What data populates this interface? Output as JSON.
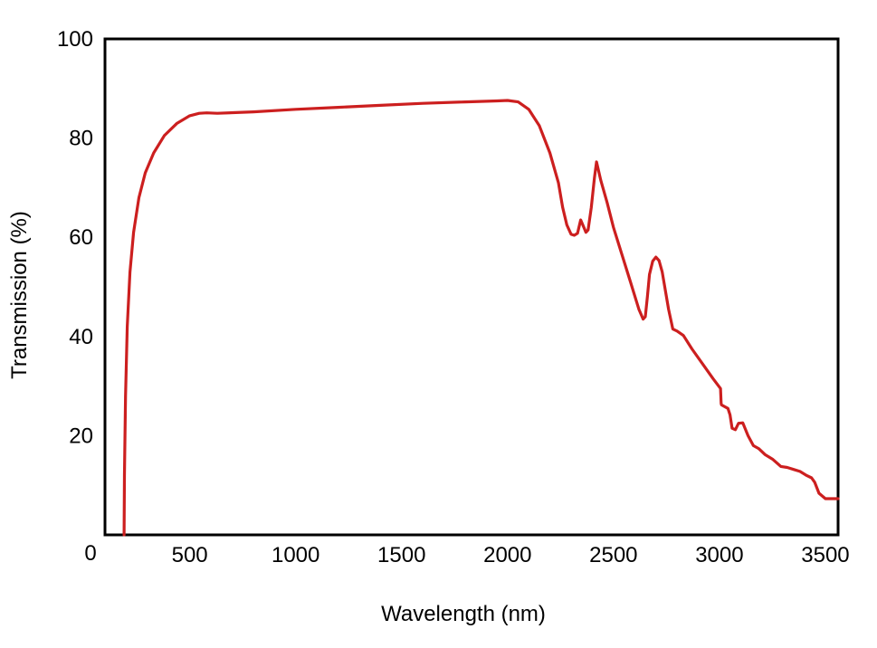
{
  "chart_data": {
    "type": "line",
    "title": "",
    "xlabel": "Wavelength (nm)",
    "ylabel": "Transmission (%)",
    "xlim": [
      100,
      3560
    ],
    "ylim": [
      0,
      100
    ],
    "grid": false,
    "legend": "none",
    "origin_label": "0",
    "xticks": [
      {
        "value": 500,
        "label": "500"
      },
      {
        "value": 1000,
        "label": "1000"
      },
      {
        "value": 1500,
        "label": "1500"
      },
      {
        "value": 2000,
        "label": "2000"
      },
      {
        "value": 2500,
        "label": "2500"
      },
      {
        "value": 3000,
        "label": "3000"
      },
      {
        "value": 3500,
        "label": "3500"
      }
    ],
    "yticks": [
      {
        "value": 20,
        "label": "20"
      },
      {
        "value": 40,
        "label": "40"
      },
      {
        "value": 60,
        "label": "60"
      },
      {
        "value": 80,
        "label": "80"
      },
      {
        "value": 100,
        "label": "100"
      }
    ],
    "series": [
      {
        "name": "Transmission",
        "color": "#cc1f1f",
        "x": [
          190,
          192,
          197,
          205,
          218,
          235,
          260,
          290,
          330,
          380,
          440,
          500,
          545,
          580,
          630,
          800,
          1000,
          1200,
          1400,
          1600,
          1800,
          1950,
          2000,
          2050,
          2100,
          2150,
          2200,
          2240,
          2260,
          2280,
          2300,
          2315,
          2330,
          2345,
          2360,
          2370,
          2380,
          2395,
          2410,
          2420,
          2440,
          2470,
          2500,
          2540,
          2580,
          2620,
          2640,
          2650,
          2660,
          2670,
          2685,
          2700,
          2715,
          2730,
          2760,
          2780,
          2800,
          2830,
          2870,
          2920,
          2970,
          3005,
          3008,
          3010,
          3040,
          3050,
          3060,
          3075,
          3090,
          3110,
          3135,
          3160,
          3185,
          3215,
          3250,
          3290,
          3320,
          3350,
          3380,
          3410,
          3435,
          3450,
          3470,
          3500,
          3520,
          3530,
          3550,
          3560
        ],
        "y": [
          0,
          12,
          28,
          42,
          53,
          61,
          68,
          73,
          77,
          80.5,
          83,
          84.5,
          85,
          85.1,
          85,
          85.3,
          85.8,
          86.2,
          86.6,
          87,
          87.3,
          87.5,
          87.6,
          87.3,
          85.8,
          82.5,
          77,
          71,
          66,
          62.5,
          60.6,
          60.4,
          60.8,
          63.5,
          62,
          61,
          61.5,
          66,
          72,
          75.2,
          71.5,
          67,
          62,
          56.5,
          51,
          45.5,
          43.5,
          44,
          48,
          52.5,
          55.2,
          56,
          55.3,
          53,
          45.5,
          41.5,
          41.1,
          40.2,
          37.5,
          34.5,
          31.5,
          29.5,
          26.5,
          26.2,
          25.5,
          24.2,
          21.5,
          21.2,
          22.5,
          22.6,
          20,
          18,
          17.4,
          16.2,
          15.3,
          13.8,
          13.6,
          13.2,
          12.8,
          12,
          11.5,
          10.6,
          8.4,
          7.3,
          7.3,
          7.3,
          7.3,
          7.3
        ]
      }
    ]
  }
}
